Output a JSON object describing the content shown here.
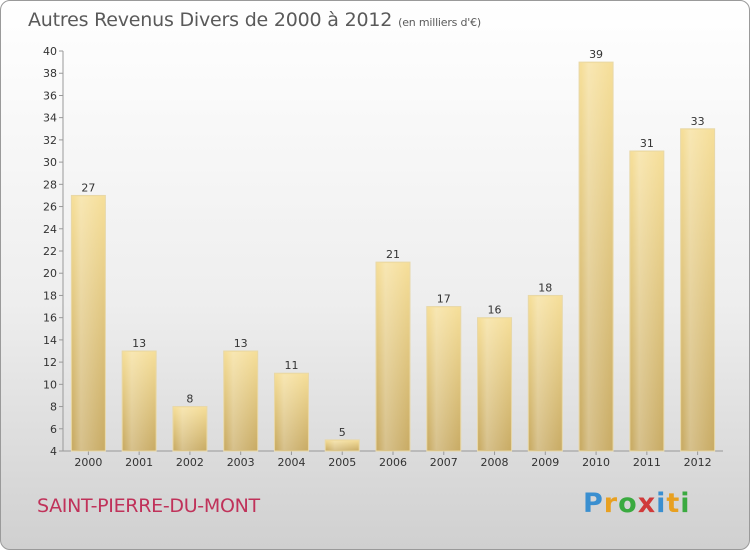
{
  "header": {
    "title": "Autres Revenus Divers de 2000 à 2012",
    "unit": "(en milliers d'€)"
  },
  "footer": {
    "place": "SAINT-PIERRE-DU-MONT",
    "logo": [
      "P",
      "r",
      "o",
      "x",
      "i",
      "t",
      "i"
    ]
  },
  "colors": {
    "logo": [
      "#3a8fd0",
      "#e8a020",
      "#3aaa40",
      "#d03a3a",
      "#3a8fd0",
      "#e8a020",
      "#3aaa40"
    ],
    "bar_light": "#f6df9a",
    "bar_dark": "#c9ac66"
  },
  "chart_data": {
    "type": "bar",
    "title": "Autres Revenus Divers de 2000 à 2012",
    "categories": [
      "2000",
      "2001",
      "2002",
      "2003",
      "2004",
      "2005",
      "2006",
      "2007",
      "2008",
      "2009",
      "2010",
      "2011",
      "2012"
    ],
    "values": [
      27,
      13,
      8,
      13,
      11,
      5,
      21,
      17,
      16,
      18,
      39,
      31,
      33
    ],
    "ylim": [
      4,
      40
    ],
    "yticks": [
      4,
      6,
      8,
      10,
      12,
      14,
      16,
      18,
      20,
      22,
      24,
      26,
      28,
      30,
      32,
      34,
      36,
      38,
      40
    ],
    "grid": false,
    "data_labels": true
  }
}
